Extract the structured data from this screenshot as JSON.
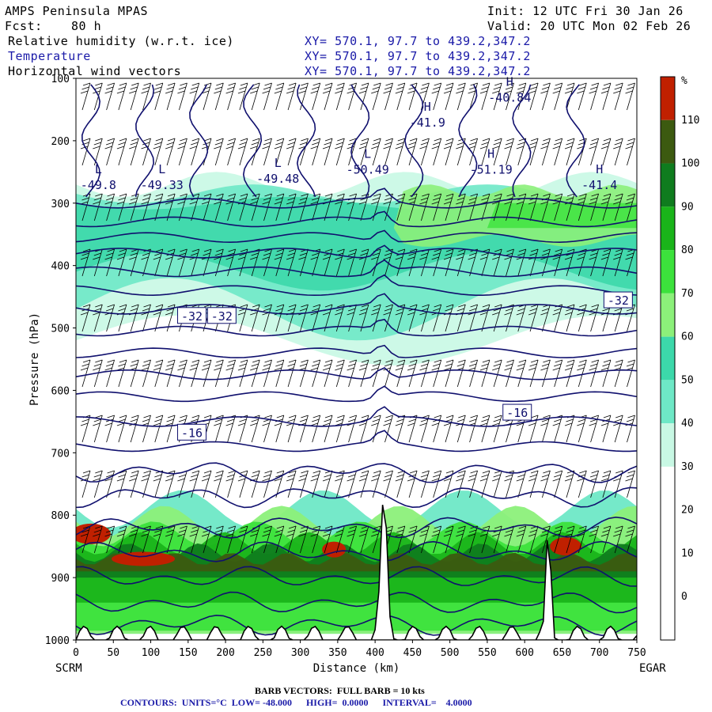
{
  "header": {
    "model": "AMPS Peninsula MPAS",
    "fcst_label": "Fcst:",
    "fcst_value": "80 h",
    "init": "Init: 12 UTC Fri 30 Jan 26",
    "valid": "Valid: 20 UTC Mon 02 Feb 26",
    "fields": [
      {
        "name": "Relative humidity (w.r.t. ice)",
        "xy": "XY= 570.1, 97.7 to 439.2,347.2"
      },
      {
        "name": "Temperature",
        "xy": "XY= 570.1, 97.7 to 439.2,347.2"
      },
      {
        "name": "Horizontal wind vectors",
        "xy": "XY= 570.1, 97.7 to 439.2,347.2"
      }
    ]
  },
  "footer": {
    "barb": "BARB VECTORS:  FULL BARB = 10 kts",
    "contours": "CONTOURS:  UNITS=°C  LOW= -48.000      HIGH=  0.0000      INTERVAL=    4.0000"
  },
  "colors": {
    "rh_bands": [
      "#ffffff",
      "#ffffff",
      "#ffffff",
      "#ffffff",
      "#c8f8e4",
      "#6ee8c6",
      "#3cd8aa",
      "#8cf07a",
      "#3ce23c",
      "#1ab41a",
      "#0f7c1e",
      "#3c5a10",
      "#c02000"
    ],
    "temp_contour": "#10106e",
    "barb": "#000000"
  },
  "chart_data": {
    "type": "cross-section",
    "xlabel": "Distance (km)",
    "ylabel": "Pressure (hPa)",
    "xlim": [
      0,
      750
    ],
    "ylim": [
      1000,
      100
    ],
    "x_ticks": [
      "0",
      "50",
      "100",
      "150",
      "200",
      "250",
      "300",
      "350",
      "400",
      "450",
      "500",
      "550",
      "600",
      "650",
      "700",
      "750"
    ],
    "y_ticks": [
      "100",
      "200",
      "300",
      "400",
      "500",
      "600",
      "700",
      "800",
      "900",
      "1000"
    ],
    "left_endpoint": "SCRM",
    "right_endpoint": "EGAR",
    "colorbar": {
      "unit": "%",
      "labels": [
        "110",
        "100",
        "90",
        "80",
        "70",
        "60",
        "50",
        "40",
        "30",
        "20",
        "10",
        "0"
      ]
    },
    "temperature_labels": [
      {
        "text": "-32",
        "x": 155,
        "p": 480
      },
      {
        "text": "-32",
        "x": 195,
        "p": 480
      },
      {
        "text": "-32",
        "x": 725,
        "p": 455
      },
      {
        "text": "-16",
        "x": 590,
        "p": 635
      },
      {
        "text": "-16",
        "x": 155,
        "p": 667
      }
    ],
    "extrema": [
      {
        "kind": "L",
        "value": "-49.8",
        "x": 30,
        "p": 270
      },
      {
        "kind": "L",
        "value": "-49.33",
        "x": 115,
        "p": 270
      },
      {
        "kind": "L",
        "value": "-49.48",
        "x": 270,
        "p": 260
      },
      {
        "kind": "L",
        "value": "-50.49",
        "x": 390,
        "p": 245
      },
      {
        "kind": "H",
        "value": "-40.84",
        "x": 580,
        "p": 130
      },
      {
        "kind": "H",
        "value": "-41.9",
        "x": 470,
        "p": 170
      },
      {
        "kind": "H",
        "value": "-51.19",
        "x": 555,
        "p": 245
      },
      {
        "kind": "H",
        "value": "-41.4",
        "x": 700,
        "p": 270
      }
    ]
  }
}
